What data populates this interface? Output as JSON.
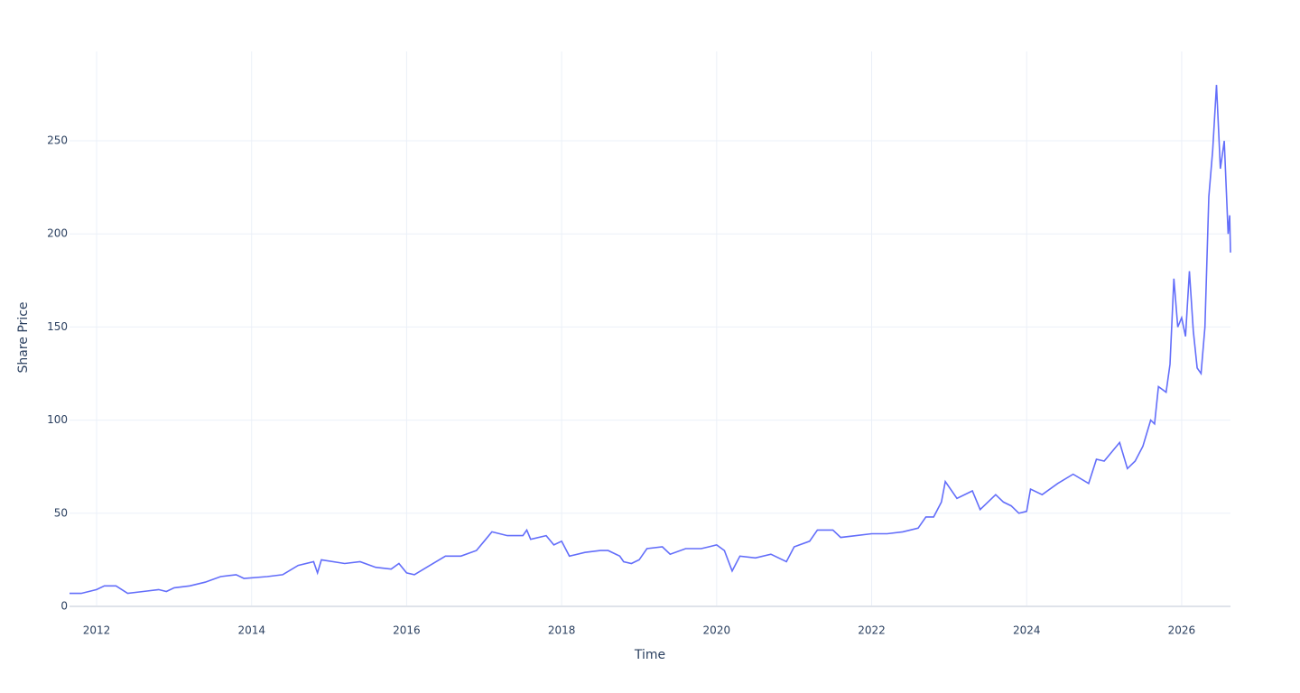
{
  "chart_data": {
    "type": "line",
    "xlabel": "Time",
    "ylabel": "Share Price",
    "x": [
      2011.65,
      2011.8,
      2011.9,
      2012.0,
      2012.1,
      2012.25,
      2012.4,
      2012.6,
      2012.8,
      2012.9,
      2013.0,
      2013.2,
      2013.4,
      2013.6,
      2013.8,
      2013.9,
      2014.2,
      2014.4,
      2014.6,
      2014.8,
      2014.85,
      2014.9,
      2015.2,
      2015.4,
      2015.6,
      2015.8,
      2015.9,
      2016.0,
      2016.1,
      2016.3,
      2016.5,
      2016.7,
      2016.9,
      2017.0,
      2017.1,
      2017.3,
      2017.5,
      2017.55,
      2017.6,
      2017.8,
      2017.9,
      2018.0,
      2018.1,
      2018.3,
      2018.5,
      2018.6,
      2018.75,
      2018.8,
      2018.9,
      2019.0,
      2019.1,
      2019.3,
      2019.4,
      2019.6,
      2019.8,
      2019.9,
      2020.0,
      2020.1,
      2020.2,
      2020.3,
      2020.5,
      2020.7,
      2020.9,
      2021.0,
      2021.2,
      2021.3,
      2021.5,
      2021.6,
      2021.8,
      2022.0,
      2022.2,
      2022.4,
      2022.6,
      2022.7,
      2022.8,
      2022.9,
      2022.95,
      2023.1,
      2023.3,
      2023.4,
      2023.6,
      2023.7,
      2023.8,
      2023.9,
      2024.0,
      2024.05,
      2024.2,
      2024.4,
      2024.6,
      2024.8,
      2024.9,
      2025.0,
      2025.2,
      2025.3,
      2025.4,
      2025.5,
      2025.6,
      2025.65,
      2025.7,
      2025.8,
      2025.85,
      2025.9,
      2025.95,
      2026.0,
      2026.05,
      2026.1,
      2026.15,
      2026.2,
      2026.25,
      2026.3,
      2026.35,
      2026.4,
      2026.45,
      2026.5,
      2026.55,
      2026.6,
      2026.62,
      2026.63
    ],
    "series": [
      {
        "name": "Share Price",
        "color": "#636efa",
        "values": [
          7,
          7,
          8,
          9,
          11,
          11,
          7,
          8,
          9,
          8,
          10,
          11,
          13,
          16,
          17,
          15,
          16,
          17,
          22,
          24,
          18,
          25,
          23,
          24,
          21,
          20,
          23,
          18,
          17,
          22,
          27,
          27,
          30,
          35,
          40,
          38,
          38,
          41,
          36,
          38,
          33,
          35,
          27,
          29,
          30,
          30,
          27,
          24,
          23,
          25,
          31,
          32,
          28,
          31,
          31,
          32,
          33,
          30,
          19,
          27,
          26,
          28,
          24,
          32,
          35,
          41,
          41,
          37,
          38,
          39,
          39,
          40,
          42,
          48,
          48,
          56,
          67,
          58,
          62,
          52,
          60,
          56,
          54,
          50,
          51,
          63,
          60,
          66,
          71,
          66,
          79,
          78,
          88,
          74,
          78,
          86,
          100,
          98,
          118,
          115,
          130,
          176,
          150,
          155,
          145,
          180,
          148,
          128,
          125,
          150,
          220,
          245,
          280,
          235,
          250,
          200,
          210,
          190
        ]
      }
    ],
    "xlim": [
      2011.65,
      2026.63
    ],
    "xticks": [
      2012,
      2014,
      2016,
      2018,
      2020,
      2022,
      2024,
      2026
    ],
    "ylim": [
      0,
      298
    ],
    "yticks": [
      0,
      50,
      100,
      150,
      200,
      250
    ],
    "grid": true
  }
}
